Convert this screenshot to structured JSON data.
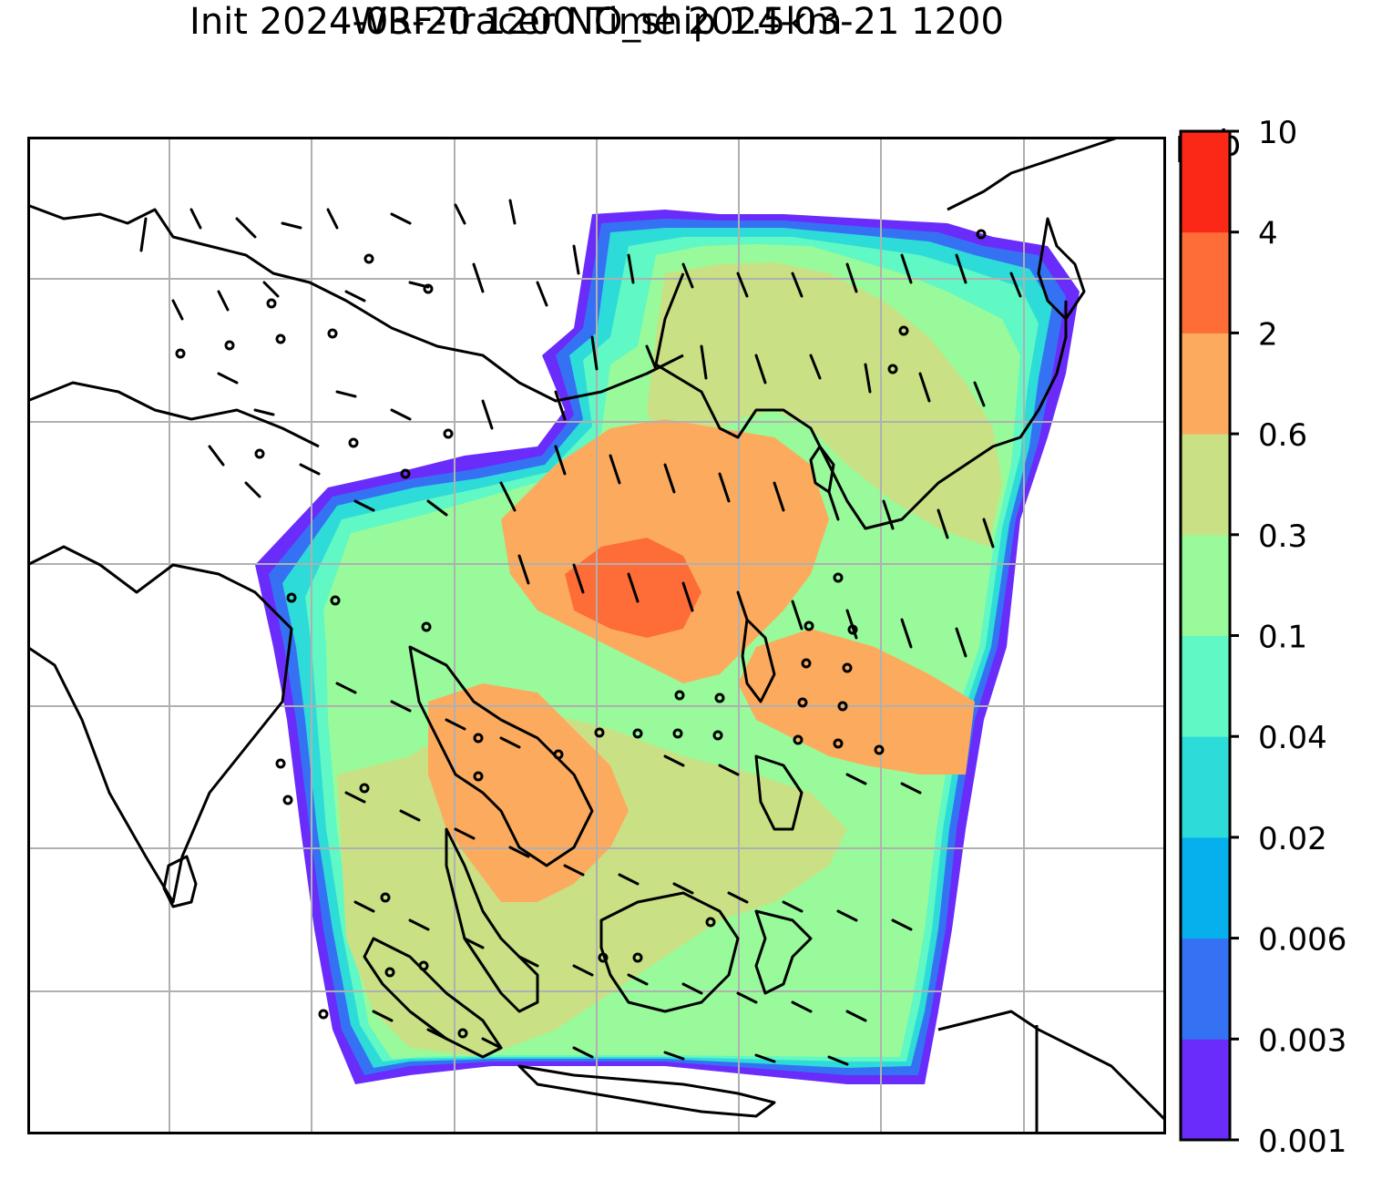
{
  "title_line1": "WRF-Tracer NO_ship 1.5km",
  "title_line2": "Init 2024-03-20 1200 Time 2024-03-21 1200",
  "colorbar": {
    "unit": "ppb",
    "ticks": [
      "0.001",
      "0.003",
      "0.006",
      "0.02",
      "0.04",
      "0.1",
      "0.3",
      "0.6",
      "2",
      "4",
      "10"
    ],
    "colors": [
      "#6a2cfa",
      "#3572f3",
      "#05b0ec",
      "#2ddbd8",
      "#60f8c4",
      "#98fa9a",
      "#c9e184",
      "#fcab5e",
      "#fe6d37",
      "#fb2817"
    ]
  },
  "map": {
    "grid_lines": "on",
    "field_colors": {
      "outer_edge": "#6a2cfa",
      "edge_blue": "#3572f3",
      "cyan": "#2ddbd8",
      "aqua": "#60f8c4",
      "light_green": "#98fa9a",
      "olive": "#c9e184",
      "orange": "#fcab5e",
      "red_orange": "#fe6d37"
    },
    "wind_barbs": "black",
    "coastlines": "black"
  }
}
